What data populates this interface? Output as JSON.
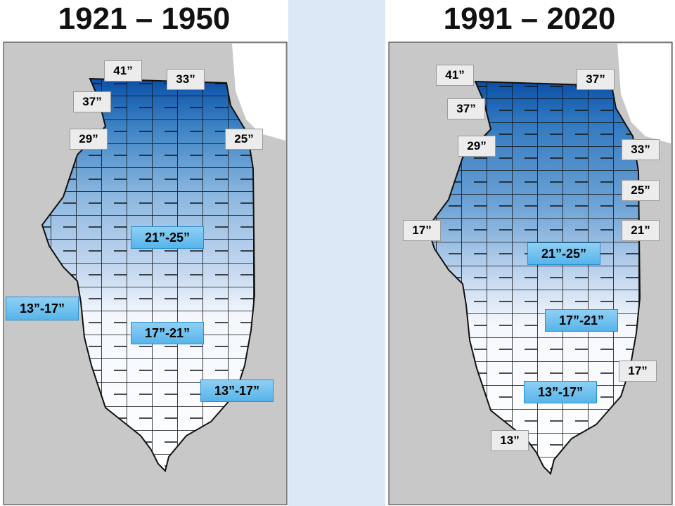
{
  "panels": [
    {
      "title": "1921 – 1950",
      "contour_labels": [
        "41”",
        "33”",
        "37”",
        "29”",
        "25”"
      ],
      "range_labels": [
        "21”-25”",
        "13”-17”",
        "17”-21”",
        "13”-17”"
      ]
    },
    {
      "title": "1991 – 2020",
      "contour_labels": [
        "41”",
        "37”",
        "37”",
        "29”",
        "33”",
        "25”",
        "17”",
        "21”",
        "17”",
        "13”"
      ],
      "range_labels": [
        "21”-25”",
        "17”-21”",
        "13”-17”"
      ]
    }
  ]
}
